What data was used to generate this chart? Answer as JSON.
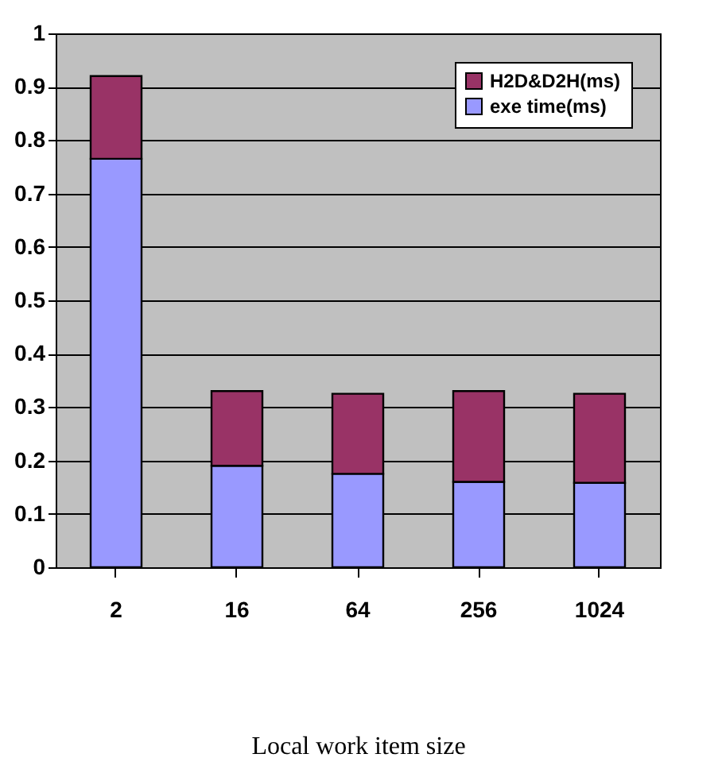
{
  "chart_data": {
    "type": "bar",
    "stacked": true,
    "xlabel": "Local work item size",
    "categories": [
      "2",
      "16",
      "64",
      "256",
      "1024"
    ],
    "series": [
      {
        "name": "exe time(ms)",
        "color": "#9999ff",
        "values": [
          0.765,
          0.19,
          0.175,
          0.16,
          0.158
        ]
      },
      {
        "name": "H2D&D2H(ms)",
        "color": "#993366",
        "values": [
          0.155,
          0.14,
          0.15,
          0.17,
          0.167
        ]
      }
    ],
    "ylim": [
      0,
      1
    ],
    "yticks": [
      0,
      0.1,
      0.2,
      0.3,
      0.4,
      0.5,
      0.6,
      0.7,
      0.8,
      0.9,
      1
    ],
    "grid": "y",
    "legend": "top right"
  }
}
